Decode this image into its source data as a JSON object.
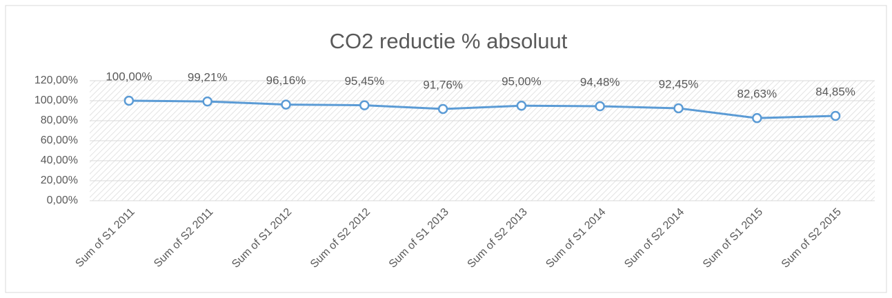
{
  "chart_data": {
    "type": "line",
    "title": "CO2 reductie % absoluut",
    "categories": [
      "Sum of S1 2011",
      "Sum of S2 2011",
      "Sum of S1 2012",
      "Sum of S2 2012",
      "Sum of S1 2013",
      "Sum of S2 2013",
      "Sum of S1 2014",
      "Sum of S2 2014",
      "Sum of S1 2015",
      "Sum of S2 2015"
    ],
    "values": [
      100,
      99.21,
      96.16,
      95.45,
      91.76,
      95,
      94.48,
      92.45,
      82.63,
      84.85
    ],
    "value_labels": [
      "100,00%",
      "99,21%",
      "96,16%",
      "95,45%",
      "91,76%",
      "95,00%",
      "94,48%",
      "92,45%",
      "82,63%",
      "84,85%"
    ],
    "color": "#5b9bd5",
    "ylim": [
      0,
      120
    ],
    "yticks": [
      {
        "value": 0,
        "label": "0,00%"
      },
      {
        "value": 20,
        "label": "20,00%"
      },
      {
        "value": 40,
        "label": "40,00%"
      },
      {
        "value": 60,
        "label": "60,00%"
      },
      {
        "value": 80,
        "label": "80,00%"
      },
      {
        "value": 100,
        "label": "100,00%"
      },
      {
        "value": 120,
        "label": "120,00%"
      }
    ],
    "grid": true
  }
}
